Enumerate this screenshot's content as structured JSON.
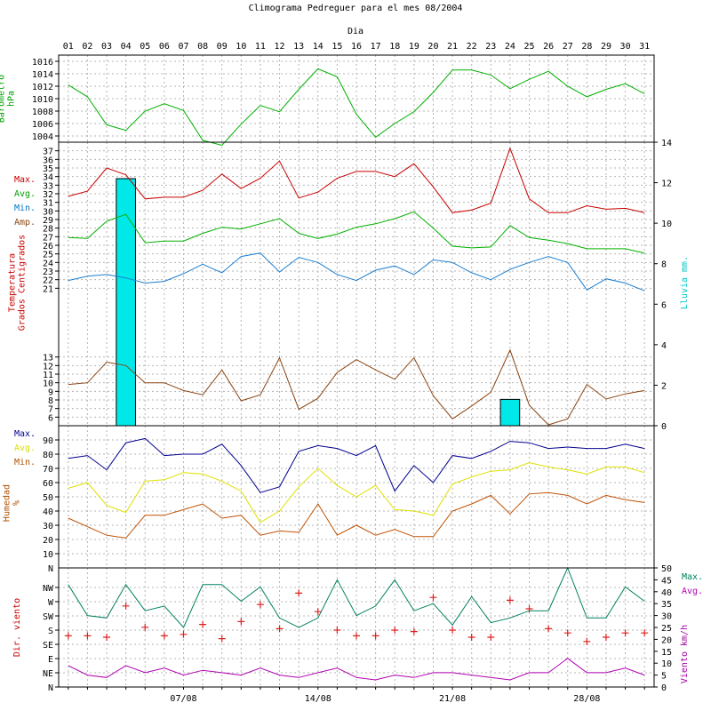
{
  "chart_data": {
    "type": "line",
    "title": "Climograma Pedreguer para el mes 08/2004",
    "xlabel": "Dia",
    "days": [
      "01",
      "02",
      "03",
      "04",
      "05",
      "06",
      "07",
      "08",
      "09",
      "10",
      "11",
      "12",
      "13",
      "14",
      "15",
      "16",
      "17",
      "18",
      "19",
      "20",
      "21",
      "22",
      "23",
      "24",
      "25",
      "26",
      "27",
      "28",
      "29",
      "30",
      "31"
    ],
    "date_labels": [
      {
        "day": 7,
        "label": "07/08"
      },
      {
        "day": 14,
        "label": "14/08"
      },
      {
        "day": 21,
        "label": "21/08"
      },
      {
        "day": 28,
        "label": "28/08"
      }
    ],
    "panels": [
      {
        "id": "barometro",
        "ylabel": [
          "Barometro",
          "hPa"
        ],
        "ylabel_color": "#00a000",
        "ylim": [
          1003,
          1017
        ],
        "yticks": [
          1004,
          1006,
          1008,
          1010,
          1012,
          1014,
          1016
        ],
        "series": [
          {
            "color": "#00b000",
            "values": [
              1012.2,
              1010.3,
              1005.8,
              1004.9,
              1008.0,
              1009.2,
              1008.1,
              1003.3,
              1002.5,
              1005.9,
              1008.9,
              1007.9,
              1011.5,
              1014.8,
              1013.5,
              1007.5,
              1003.8,
              1006.0,
              1007.9,
              1011.0,
              1014.6,
              1014.6,
              1013.8,
              1011.6,
              1013.1,
              1014.4,
              1012.0,
              1010.3,
              1011.5,
              1012.4,
              1010.8
            ]
          }
        ]
      },
      {
        "id": "temperatura",
        "ylabel": [
          "Temperatura",
          "Grados Centigrados"
        ],
        "ylabel_color": "#c80000",
        "ylim": [
          5,
          38
        ],
        "yticks": [
          6,
          7,
          8,
          9,
          10,
          11,
          12,
          13,
          21,
          22,
          23,
          24,
          25,
          26,
          27,
          28,
          29,
          30,
          31,
          32,
          33,
          34,
          35,
          36,
          37
        ],
        "y2label": "Lluvia mm.",
        "y2label_color": "#00c8c8",
        "y2lim": [
          0,
          14
        ],
        "y2ticks": [
          0,
          2,
          4,
          6,
          8,
          10,
          12,
          14
        ],
        "legend": [
          {
            "label": "Max.",
            "color": "#c80000"
          },
          {
            "label": "Avg.",
            "color": "#00a000"
          },
          {
            "label": "Min.",
            "color": "#0078c8"
          },
          {
            "label": "Amp.",
            "color": "#8b4513"
          }
        ],
        "series": [
          {
            "name": "Max.",
            "color": "#c80000",
            "values": [
              31.7,
              32.3,
              35.0,
              34.2,
              31.4,
              31.6,
              31.6,
              32.4,
              34.3,
              32.6,
              33.8,
              35.8,
              31.5,
              32.2,
              33.8,
              34.6,
              34.6,
              34.0,
              35.5,
              32.8,
              29.8,
              30.1,
              30.9,
              37.3,
              31.4,
              29.8,
              29.8,
              30.6,
              30.2,
              30.3,
              29.8
            ]
          },
          {
            "name": "Avg.",
            "color": "#00b000",
            "values": [
              26.9,
              26.8,
              28.8,
              29.6,
              26.3,
              26.5,
              26.5,
              27.4,
              28.1,
              27.9,
              28.5,
              29.1,
              27.4,
              26.8,
              27.3,
              28.1,
              28.5,
              29.1,
              29.9,
              28.0,
              25.9,
              25.7,
              25.8,
              28.3,
              26.9,
              26.6,
              26.2,
              25.6,
              25.6,
              25.6,
              25.1
            ]
          },
          {
            "name": "Min.",
            "color": "#1e7fd0",
            "values": [
              21.9,
              22.4,
              22.6,
              22.2,
              21.6,
              21.8,
              22.7,
              23.8,
              22.8,
              24.7,
              25.1,
              22.9,
              24.6,
              24.0,
              22.6,
              21.9,
              23.1,
              23.6,
              22.6,
              24.3,
              24.0,
              22.8,
              22.0,
              23.2,
              24.0,
              24.7,
              24.0,
              20.8,
              22.1,
              21.6,
              20.7
            ]
          },
          {
            "name": "Amp.",
            "color": "#8b4513",
            "values": [
              9.8,
              10.0,
              12.4,
              12.0,
              10.0,
              10.0,
              9.1,
              8.6,
              11.5,
              7.9,
              8.6,
              12.9,
              6.9,
              8.2,
              11.2,
              12.7,
              11.5,
              10.4,
              12.9,
              8.5,
              5.8,
              7.3,
              8.9,
              13.8,
              7.4,
              5.1,
              5.8,
              9.8,
              8.1,
              8.7,
              9.1
            ]
          }
        ],
        "bars": [
          {
            "day": 4,
            "value": 12.2,
            "color": "#00e8e8"
          },
          {
            "day": 24,
            "value": 1.3,
            "color": "#00e8e8"
          }
        ]
      },
      {
        "id": "humedad",
        "ylabel": [
          "Humedad",
          "%"
        ],
        "ylabel_color": "#b05000",
        "ylim": [
          0,
          100
        ],
        "yticks": [
          10,
          20,
          30,
          40,
          50,
          60,
          70,
          80,
          90
        ],
        "bottom_label": "N",
        "legend": [
          {
            "label": "Max.",
            "color": "#000090"
          },
          {
            "label": "Avg.",
            "color": "#dcdc00"
          },
          {
            "label": "Min.",
            "color": "#b05000"
          }
        ],
        "series": [
          {
            "name": "Max.",
            "color": "#000090",
            "values": [
              77,
              79,
              69,
              88,
              91,
              79,
              80,
              80,
              87,
              72,
              53,
              57,
              82,
              86,
              84,
              79,
              86,
              54,
              72,
              60,
              79,
              77,
              82,
              89,
              88,
              84,
              85,
              84,
              84,
              87,
              84
            ]
          },
          {
            "name": "Avg.",
            "color": "#e0e000",
            "values": [
              56,
              60,
              44,
              39,
              61,
              62,
              67,
              66,
              61,
              54,
              32,
              40,
              57,
              70,
              58,
              50,
              58,
              41,
              40,
              37,
              59,
              64,
              68,
              69,
              74,
              71,
              69,
              66,
              71,
              71,
              67
            ]
          },
          {
            "name": "Min.",
            "color": "#c05000",
            "values": [
              35,
              29,
              23,
              21,
              37,
              37,
              41,
              45,
              35,
              37,
              23,
              26,
              25,
              45,
              23,
              30,
              23,
              27,
              22,
              22,
              40,
              45,
              51,
              38,
              52,
              53,
              51,
              45,
              51,
              48,
              46
            ]
          }
        ]
      },
      {
        "id": "viento",
        "ylabel": [
          "Dir. viento"
        ],
        "ylabel_color": "#c80000",
        "dir_labels": [
          "N",
          "NE",
          "E",
          "SE",
          "S",
          "SW",
          "W",
          "NW"
        ],
        "y2label": "Viento km/h",
        "y2label_color": "#a000a0",
        "y2lim": [
          0,
          50
        ],
        "y2ticks": [
          0,
          5,
          10,
          15,
          20,
          25,
          30,
          35,
          40,
          45,
          50
        ],
        "legend": [
          {
            "label": "Max.",
            "color": "#008060"
          },
          {
            "label": "Avg.",
            "color": "#b000b0"
          }
        ],
        "series": [
          {
            "name": "Max.",
            "color": "#008060",
            "values": [
              43,
              30,
              29,
              43,
              32,
              34,
              25,
              43,
              43,
              36,
              42,
              29,
              25,
              29,
              45,
              30,
              34,
              45,
              32,
              35,
              26,
              38,
              27,
              29,
              32,
              32,
              50,
              29,
              29,
              42,
              36
            ]
          },
          {
            "name": "Avg.",
            "color": "#b000b0",
            "values": [
              9,
              5,
              4,
              9,
              6,
              8,
              5,
              7,
              6,
              5,
              8,
              5,
              4,
              6,
              8,
              4,
              3,
              5,
              4,
              6,
              6,
              5,
              4,
              3,
              6,
              6,
              12,
              6,
              6,
              8,
              5
            ]
          }
        ],
        "direction_marks": {
          "color": "#e02020",
          "values": [
            3.6,
            3.6,
            3.5,
            5.7,
            4.2,
            3.6,
            3.7,
            4.4,
            3.4,
            4.6,
            5.8,
            4.1,
            6.6,
            5.3,
            4.0,
            3.6,
            3.6,
            4.0,
            3.9,
            6.3,
            4.0,
            3.5,
            3.5,
            6.1,
            5.5,
            4.1,
            3.8,
            3.2,
            3.5,
            3.8,
            3.8
          ]
        }
      }
    ]
  }
}
